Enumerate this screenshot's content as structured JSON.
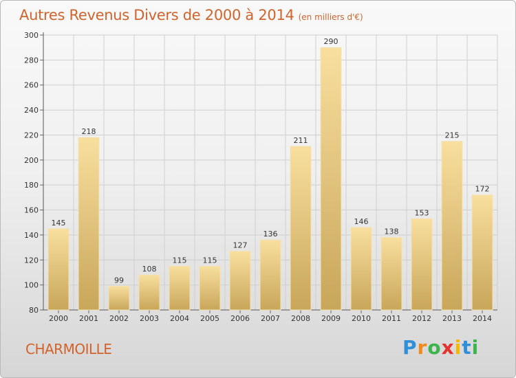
{
  "chart_data": {
    "type": "bar",
    "title": "Autres Revenus Divers de 2000 à 2014",
    "subtitle": "(en milliers d'€)",
    "categories": [
      "2000",
      "2001",
      "2002",
      "2003",
      "2004",
      "2005",
      "2006",
      "2007",
      "2008",
      "2009",
      "2010",
      "2011",
      "2012",
      "2013",
      "2014"
    ],
    "values": [
      145,
      218,
      99,
      108,
      115,
      115,
      127,
      136,
      211,
      290,
      146,
      138,
      153,
      215,
      172
    ],
    "ylim": [
      80,
      300
    ],
    "yticks": [
      80,
      100,
      120,
      140,
      160,
      180,
      200,
      220,
      240,
      260,
      280,
      300
    ],
    "grid": true,
    "colors": {
      "bar_light": "#f7dc9a",
      "bar_dark": "#c9a85c",
      "grid": "#cfcfcf",
      "title": "#d1632b"
    }
  },
  "commune": "CHARMOILLE",
  "logo": {
    "letters": [
      "P",
      "r",
      "o",
      "x",
      "i",
      "t",
      "i"
    ],
    "colors": [
      "#2f8fd8",
      "#f08a1c",
      "#3ab54a",
      "#e5322d",
      "#f5b700",
      "#2f8fd8",
      "#3ab54a"
    ]
  }
}
